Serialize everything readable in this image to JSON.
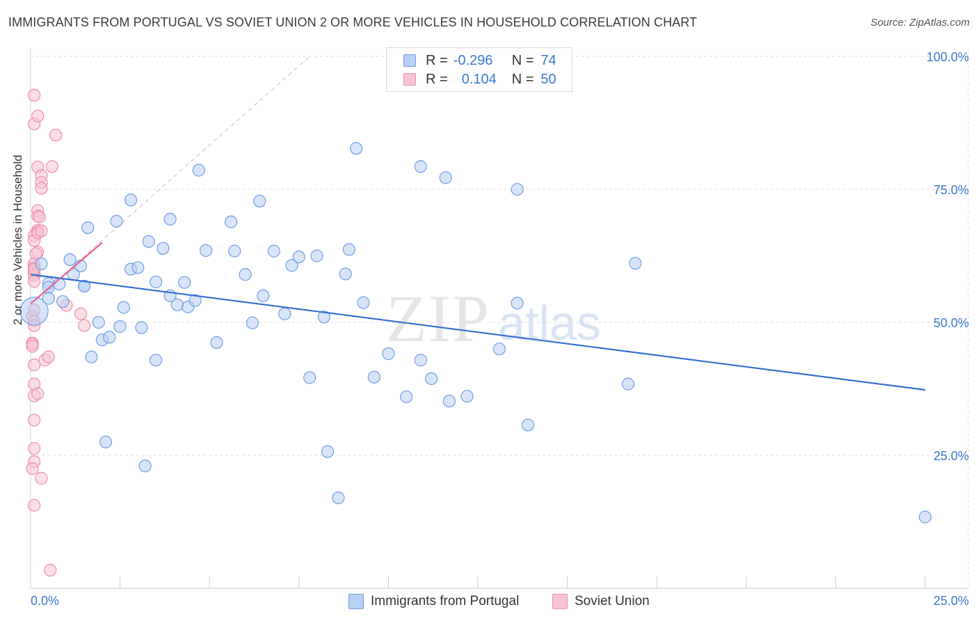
{
  "title": "IMMIGRANTS FROM PORTUGAL VS SOVIET UNION 2 OR MORE VEHICLES IN HOUSEHOLD CORRELATION CHART",
  "source": "Source: ZipAtlas.com",
  "watermark": {
    "zip": "ZIP",
    "atlas": "atlas"
  },
  "legend": {
    "rows": [
      {
        "r_label": "R =",
        "r_value": "-0.296",
        "n_label": "N =",
        "n_value": "74"
      },
      {
        "r_label": "R =",
        "r_value": "0.104",
        "n_label": "N =",
        "n_value": "50"
      }
    ]
  },
  "colors": {
    "blue_fill": "#b8d0f3",
    "blue_stroke": "#6e9ee0",
    "blue_line": "#2f6fcf",
    "pink_fill": "#f8c4d3",
    "pink_stroke": "#ec8eaa",
    "pink_line": "#e0628e",
    "axis_tick_label": "#3a78cf",
    "grid": "#dcdcdc"
  },
  "chart_data": {
    "type": "scatter",
    "title": "IMMIGRANTS FROM PORTUGAL VS SOVIET UNION 2 OR MORE VEHICLES IN HOUSEHOLD CORRELATION CHART",
    "xlabel": "",
    "ylabel": "2 or more Vehicles in Household",
    "xlim": [
      0,
      25
    ],
    "ylim": [
      0,
      105
    ],
    "x_tick_labels": [
      "0.0%",
      "25.0%"
    ],
    "y_ticks": [
      25,
      50,
      75,
      100
    ],
    "y_tick_labels": [
      "25.0%",
      "50.0%",
      "75.0%",
      "100.0%"
    ],
    "grid": "horizontal dashed",
    "legend_position": "bottom-center",
    "series": [
      {
        "name": "Immigrants from Portugal",
        "color": "#b8d0f3",
        "trend": {
          "x": [
            0.0,
            25.0
          ],
          "y": [
            59.0,
            37.3
          ]
        },
        "points": [
          [
            0.1,
            52.1
          ],
          [
            0.3,
            61.0
          ],
          [
            0.5,
            57.3
          ],
          [
            0.5,
            56.6
          ],
          [
            0.8,
            57.2
          ],
          [
            0.9,
            53.9
          ],
          [
            1.1,
            61.8
          ],
          [
            1.2,
            59.0
          ],
          [
            1.4,
            60.6
          ],
          [
            1.5,
            56.8
          ],
          [
            1.6,
            67.8
          ],
          [
            1.7,
            43.5
          ],
          [
            1.9,
            50.0
          ],
          [
            2.0,
            46.7
          ],
          [
            2.1,
            27.5
          ],
          [
            2.2,
            47.2
          ],
          [
            2.4,
            69.0
          ],
          [
            2.5,
            49.2
          ],
          [
            2.6,
            52.8
          ],
          [
            2.8,
            73.0
          ],
          [
            2.8,
            60.0
          ],
          [
            3.0,
            60.3
          ],
          [
            3.1,
            49.0
          ],
          [
            3.2,
            23.0
          ],
          [
            3.3,
            65.2
          ],
          [
            3.5,
            42.9
          ],
          [
            3.5,
            57.6
          ],
          [
            3.7,
            63.9
          ],
          [
            3.9,
            55.0
          ],
          [
            3.9,
            69.4
          ],
          [
            4.1,
            53.3
          ],
          [
            4.3,
            57.5
          ],
          [
            4.4,
            52.9
          ],
          [
            4.6,
            54.1
          ],
          [
            4.7,
            78.6
          ],
          [
            4.9,
            63.5
          ],
          [
            5.2,
            46.2
          ],
          [
            5.6,
            68.9
          ],
          [
            5.7,
            63.4
          ],
          [
            6.0,
            59.0
          ],
          [
            6.2,
            49.9
          ],
          [
            6.4,
            72.8
          ],
          [
            6.5,
            55.0
          ],
          [
            6.8,
            63.4
          ],
          [
            7.1,
            51.6
          ],
          [
            7.3,
            60.7
          ],
          [
            7.5,
            62.3
          ],
          [
            7.8,
            39.6
          ],
          [
            8.0,
            62.5
          ],
          [
            8.2,
            51.0
          ],
          [
            8.3,
            25.7
          ],
          [
            8.6,
            17.0
          ],
          [
            8.8,
            59.1
          ],
          [
            8.9,
            63.7
          ],
          [
            9.1,
            82.7
          ],
          [
            9.3,
            53.7
          ],
          [
            9.6,
            39.7
          ],
          [
            10.0,
            44.1
          ],
          [
            10.5,
            36.0
          ],
          [
            10.9,
            79.3
          ],
          [
            10.9,
            42.9
          ],
          [
            11.2,
            39.4
          ],
          [
            11.6,
            77.2
          ],
          [
            11.7,
            35.2
          ],
          [
            12.2,
            36.1
          ],
          [
            13.1,
            45.0
          ],
          [
            13.6,
            75.0
          ],
          [
            13.6,
            53.6
          ],
          [
            13.9,
            30.7
          ],
          [
            16.7,
            38.4
          ],
          [
            16.9,
            61.1
          ],
          [
            25.0,
            13.4
          ],
          [
            0.5,
            54.5
          ],
          [
            1.5,
            56.8
          ]
        ]
      },
      {
        "name": "Soviet Union",
        "color": "#f8c4d3",
        "trend": {
          "x": [
            0.0,
            2.0
          ],
          "y": [
            53.5,
            65.0
          ]
        },
        "trend_extension": {
          "x": [
            0.0,
            7.8
          ],
          "y": [
            53.5,
            100.0
          ]
        },
        "points": [
          [
            0.1,
            92.7
          ],
          [
            0.1,
            87.3
          ],
          [
            0.2,
            88.8
          ],
          [
            0.2,
            79.2
          ],
          [
            0.3,
            77.6
          ],
          [
            0.3,
            76.3
          ],
          [
            0.3,
            75.2
          ],
          [
            0.2,
            71.0
          ],
          [
            0.2,
            70.0
          ],
          [
            0.2,
            67.0
          ],
          [
            0.2,
            67.3
          ],
          [
            0.1,
            66.3
          ],
          [
            0.1,
            65.4
          ],
          [
            0.2,
            63.2
          ],
          [
            0.1,
            61.0
          ],
          [
            0.1,
            60.3
          ],
          [
            0.1,
            59.6
          ],
          [
            0.1,
            59.2
          ],
          [
            0.1,
            58.8
          ],
          [
            0.1,
            57.7
          ],
          [
            0.05,
            51.1
          ],
          [
            0.1,
            50.3
          ],
          [
            0.1,
            49.4
          ],
          [
            0.05,
            46.1
          ],
          [
            0.05,
            45.9
          ],
          [
            0.05,
            45.5
          ],
          [
            0.1,
            42.0
          ],
          [
            0.1,
            38.4
          ],
          [
            0.1,
            36.2
          ],
          [
            0.1,
            31.6
          ],
          [
            0.1,
            26.3
          ],
          [
            0.1,
            23.8
          ],
          [
            0.05,
            22.5
          ],
          [
            0.1,
            15.6
          ],
          [
            0.3,
            20.7
          ],
          [
            0.4,
            42.9
          ],
          [
            0.5,
            43.5
          ],
          [
            0.55,
            3.4
          ],
          [
            0.6,
            79.3
          ],
          [
            0.7,
            85.2
          ],
          [
            1.0,
            53.2
          ],
          [
            1.4,
            51.6
          ],
          [
            1.5,
            49.4
          ],
          [
            0.2,
            66.8
          ],
          [
            0.3,
            67.2
          ],
          [
            0.1,
            60.0
          ],
          [
            0.2,
            36.6
          ],
          [
            0.15,
            62.9
          ],
          [
            0.1,
            52.3
          ],
          [
            0.25,
            69.8
          ]
        ]
      }
    ]
  }
}
